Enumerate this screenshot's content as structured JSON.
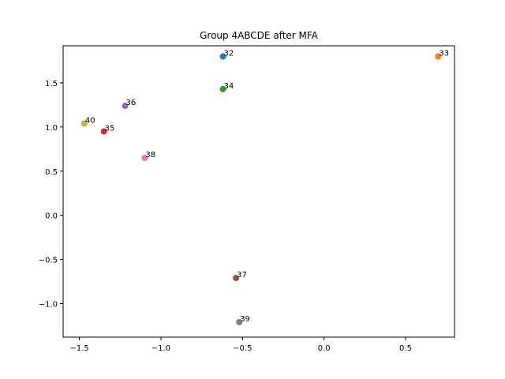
{
  "chart_data": {
    "type": "scatter",
    "title": "Group 4ABCDE after MFA",
    "xlabel": "",
    "ylabel": "",
    "xlim": [
      -1.6,
      0.8
    ],
    "ylim": [
      -1.38,
      1.92
    ],
    "xticks": [
      {
        "value": -1.5,
        "label": "−1.5"
      },
      {
        "value": -1.0,
        "label": "−1.0"
      },
      {
        "value": -0.5,
        "label": "−0.5"
      },
      {
        "value": 0.0,
        "label": "0.0"
      },
      {
        "value": 0.5,
        "label": "0.5"
      }
    ],
    "yticks": [
      {
        "value": -1.0,
        "label": "−1.0"
      },
      {
        "value": -0.5,
        "label": "−0.5"
      },
      {
        "value": 0.0,
        "label": "0.0"
      },
      {
        "value": 0.5,
        "label": "0.5"
      },
      {
        "value": 1.0,
        "label": "1.0"
      },
      {
        "value": 1.5,
        "label": "1.5"
      }
    ],
    "grid": false,
    "points": [
      {
        "label": "32",
        "x": -0.62,
        "y": 1.8,
        "color": "#1f77b4"
      },
      {
        "label": "33",
        "x": 0.7,
        "y": 1.8,
        "color": "#ff7f0e"
      },
      {
        "label": "34",
        "x": -0.62,
        "y": 1.43,
        "color": "#2ca02c"
      },
      {
        "label": "35",
        "x": -1.35,
        "y": 0.95,
        "color": "#d62728"
      },
      {
        "label": "36",
        "x": -1.22,
        "y": 1.24,
        "color": "#9467bd"
      },
      {
        "label": "37",
        "x": -0.54,
        "y": -0.71,
        "color": "#8c564b"
      },
      {
        "label": "38",
        "x": -1.1,
        "y": 0.65,
        "color": "#e377c2"
      },
      {
        "label": "39",
        "x": -0.52,
        "y": -1.21,
        "color": "#7f7f7f"
      },
      {
        "label": "40",
        "x": -1.47,
        "y": 1.04,
        "color": "#bcbd22"
      }
    ]
  }
}
